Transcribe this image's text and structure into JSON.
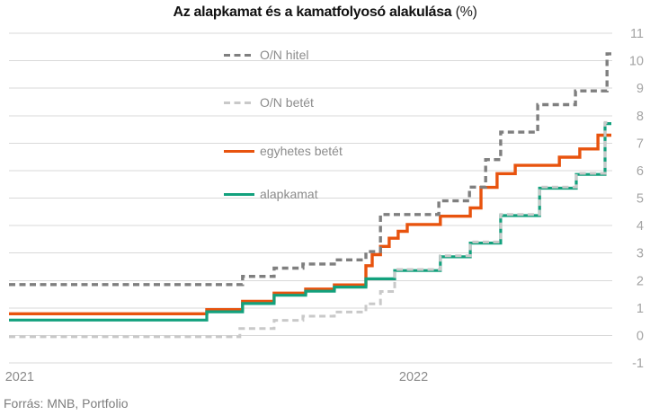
{
  "title": {
    "text": "Az alapkamat és a kamatfolyosó alakulása",
    "suffix": "(%)"
  },
  "source": "Forrás: MNB, Portfolio",
  "colors": {
    "on_hitel": "#7f7f7f",
    "on_betet": "#c9c9c9",
    "egyhetes_betet": "#e8530e",
    "alapkamat": "#12a17d",
    "gridline": "#d9d9d9",
    "tick_label": "#a3a3a3",
    "legend_text": "#8c8c8c"
  },
  "chart_data": {
    "type": "line",
    "subtype": "step",
    "title": "Az alapkamat és a kamatfolyosó alakulása (%)",
    "xlabel": "",
    "ylabel": "",
    "x_axis": {
      "ticks": [
        "2021",
        "2022"
      ],
      "tick_positions": [
        2021,
        2022
      ],
      "range": [
        2020.973,
        2022.502
      ]
    },
    "y_axis": {
      "ticks": [
        11,
        10,
        9,
        8,
        7,
        6,
        5,
        4,
        3,
        2,
        1,
        0,
        -1
      ],
      "range": [
        -1,
        11
      ],
      "side": "right"
    },
    "grid": "horizontal",
    "legend_position": "top-left-inside",
    "series": [
      {
        "name": "O/N hitel",
        "color": "#7f7f7f",
        "style": "dashed",
        "points": [
          [
            2020.973,
            1.85
          ],
          [
            2021.566,
            2.15
          ],
          [
            2021.646,
            2.45
          ],
          [
            2021.719,
            2.6
          ],
          [
            2021.799,
            2.75
          ],
          [
            2021.879,
            3.05
          ],
          [
            2021.916,
            4.4
          ],
          [
            2022.064,
            4.9
          ],
          [
            2022.142,
            5.4
          ],
          [
            2022.183,
            6.4
          ],
          [
            2022.221,
            7.4
          ],
          [
            2022.315,
            8.4
          ],
          [
            2022.411,
            8.9
          ],
          [
            2022.491,
            10.25
          ]
        ]
      },
      {
        "name": "O/N betét",
        "color": "#c9c9c9",
        "style": "dashed",
        "points": [
          [
            2020.973,
            -0.05
          ],
          [
            2021.559,
            0.25
          ],
          [
            2021.646,
            0.55
          ],
          [
            2021.719,
            0.7
          ],
          [
            2021.799,
            0.85
          ],
          [
            2021.879,
            1.15
          ],
          [
            2021.916,
            1.6
          ],
          [
            2021.952,
            2.4
          ],
          [
            2022.068,
            2.9
          ],
          [
            2022.144,
            3.4
          ],
          [
            2022.221,
            4.4
          ],
          [
            2022.32,
            5.4
          ],
          [
            2022.413,
            5.9
          ],
          [
            2022.486,
            7.75
          ]
        ]
      },
      {
        "name": "egyhetes betét",
        "color": "#e8530e",
        "style": "solid",
        "points": [
          [
            2020.973,
            0.75
          ],
          [
            2021.475,
            0.9
          ],
          [
            2021.566,
            1.2
          ],
          [
            2021.646,
            1.5
          ],
          [
            2021.726,
            1.65
          ],
          [
            2021.799,
            1.8
          ],
          [
            2021.879,
            2.5
          ],
          [
            2021.895,
            2.9
          ],
          [
            2021.916,
            3.2
          ],
          [
            2021.938,
            3.5
          ],
          [
            2021.961,
            3.75
          ],
          [
            2021.984,
            4.0
          ],
          [
            2022.068,
            4.3
          ],
          [
            2022.144,
            4.6
          ],
          [
            2022.171,
            5.35
          ],
          [
            2022.212,
            5.85
          ],
          [
            2022.258,
            6.15
          ],
          [
            2022.37,
            6.45
          ],
          [
            2022.422,
            6.75
          ],
          [
            2022.468,
            7.25
          ]
        ]
      },
      {
        "name": "alapkamat",
        "color": "#12a17d",
        "style": "solid",
        "points": [
          [
            2020.973,
            0.6
          ],
          [
            2021.475,
            0.9
          ],
          [
            2021.566,
            1.2
          ],
          [
            2021.646,
            1.5
          ],
          [
            2021.726,
            1.65
          ],
          [
            2021.799,
            1.8
          ],
          [
            2021.879,
            2.1
          ],
          [
            2021.952,
            2.4
          ],
          [
            2022.068,
            2.9
          ],
          [
            2022.144,
            3.4
          ],
          [
            2022.221,
            4.4
          ],
          [
            2022.32,
            5.4
          ],
          [
            2022.413,
            5.9
          ],
          [
            2022.486,
            7.75
          ]
        ]
      }
    ]
  }
}
